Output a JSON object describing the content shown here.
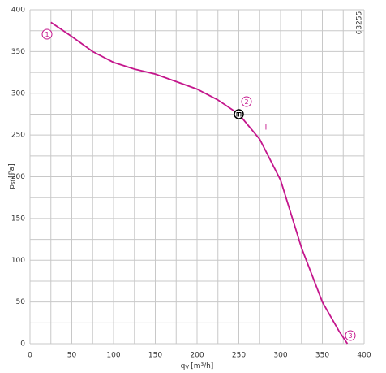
{
  "chart_data": {
    "type": "line",
    "x_label": {
      "symbol": "q",
      "sub": "V",
      "unit": "[m³/h]"
    },
    "y_label": {
      "symbol": "p",
      "sub": "sf",
      "unit": "[Pa]"
    },
    "code": "63255",
    "x": [
      25,
      50,
      75,
      100,
      125,
      150,
      175,
      200,
      225,
      250,
      275,
      300,
      325,
      350,
      370,
      380
    ],
    "series": [
      {
        "color": "#c4168c",
        "values": [
          385,
          368,
          350,
          337,
          329,
          323,
          314,
          305,
          292,
          275,
          245,
          196,
          115,
          50,
          15,
          0
        ]
      }
    ],
    "operating_point": {
      "x": 250,
      "y": 275,
      "label": "2"
    },
    "annotations": [
      "1",
      "3",
      "I"
    ],
    "xlim": [
      0,
      400
    ],
    "ylim": [
      0,
      400
    ],
    "xticks": [
      0,
      50,
      100,
      150,
      200,
      250,
      300,
      350,
      400
    ],
    "yticks": [
      0,
      50,
      100,
      150,
      200,
      250,
      300,
      350,
      400
    ],
    "minor_xticks": [
      25,
      75,
      125,
      175,
      225,
      275,
      325,
      375
    ],
    "minor_yticks": [
      25,
      75,
      125,
      175,
      225,
      275,
      325,
      375
    ],
    "grid": true
  }
}
